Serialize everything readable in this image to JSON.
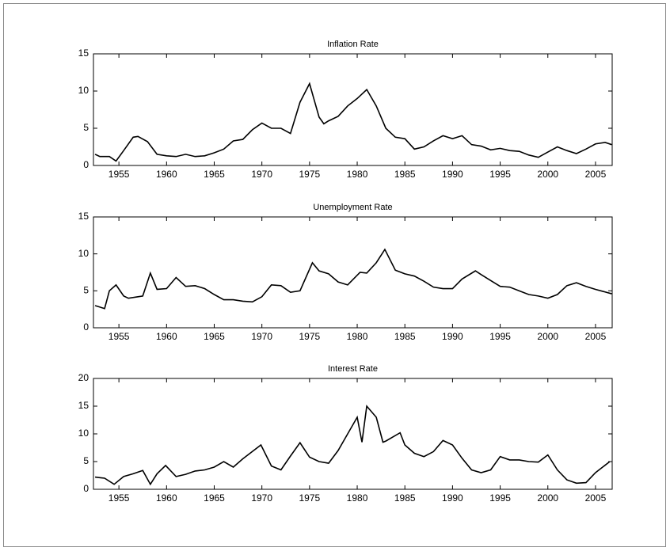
{
  "chart_data": [
    {
      "type": "line",
      "title": "Inflation Rate",
      "x": [
        1952.5,
        1953,
        1954,
        1954.7,
        1955.5,
        1956.5,
        1957,
        1958,
        1959,
        1960,
        1961,
        1962,
        1963,
        1964,
        1965,
        1966,
        1967,
        1968,
        1969,
        1970,
        1971,
        1972,
        1973,
        1974,
        1975,
        1976,
        1976.5,
        1977,
        1978,
        1979,
        1980,
        1981,
        1982,
        1983,
        1984,
        1985,
        1986,
        1987,
        1988,
        1989,
        1990,
        1991,
        1992,
        1993,
        1994,
        1995,
        1996,
        1997,
        1998,
        1999,
        2000,
        2001,
        2002,
        2003,
        2004,
        2005,
        2006,
        2006.7
      ],
      "series": [
        {
          "color": "#000000",
          "values": [
            1.5,
            1.2,
            1.2,
            0.6,
            2,
            3.8,
            3.9,
            3.2,
            1.5,
            1.3,
            1.2,
            1.5,
            1.2,
            1.3,
            1.7,
            2.2,
            3.3,
            3.5,
            4.8,
            5.7,
            5.0,
            5.0,
            4.3,
            8.5,
            11.0,
            6.5,
            5.6,
            6.0,
            6.6,
            8.0,
            9.0,
            10.2,
            8.0,
            5.0,
            3.8,
            3.6,
            2.2,
            2.5,
            3.3,
            4.0,
            3.6,
            4.0,
            2.8,
            2.6,
            2.1,
            2.3,
            2.0,
            1.9,
            1.4,
            1.1,
            1.8,
            2.5,
            2.0,
            1.6,
            2.2,
            2.9,
            3.1,
            2.8
          ]
        }
      ],
      "xlim": [
        1952.33,
        2006.75
      ],
      "xticks": [
        1955,
        1960,
        1965,
        1970,
        1975,
        1980,
        1985,
        1990,
        1995,
        2000,
        2005
      ],
      "ylim": [
        0,
        15
      ],
      "yticks": [
        0,
        5,
        10,
        15
      ]
    },
    {
      "type": "line",
      "title": "Unemployment Rate",
      "x": [
        1952.5,
        1953.5,
        1954,
        1954.7,
        1955.5,
        1956,
        1957,
        1957.5,
        1958.3,
        1959,
        1960,
        1961,
        1962,
        1963,
        1964,
        1965,
        1966,
        1967,
        1968,
        1969,
        1970,
        1971,
        1972,
        1973,
        1974,
        1975.3,
        1976,
        1977,
        1978,
        1979,
        1980.3,
        1981,
        1982,
        1982.9,
        1984,
        1985,
        1986,
        1987,
        1988,
        1989,
        1990,
        1991,
        1992.4,
        1993,
        1994,
        1995,
        1996,
        1997,
        1998,
        1999,
        2000,
        2001,
        2002,
        2003,
        2004,
        2005,
        2006.7
      ],
      "series": [
        {
          "color": "#000000",
          "values": [
            3.0,
            2.6,
            5.0,
            5.8,
            4.3,
            4.0,
            4.2,
            4.3,
            7.4,
            5.2,
            5.3,
            6.8,
            5.6,
            5.7,
            5.3,
            4.5,
            3.8,
            3.8,
            3.6,
            3.5,
            4.2,
            5.8,
            5.7,
            4.8,
            5.0,
            8.8,
            7.7,
            7.3,
            6.2,
            5.8,
            7.5,
            7.4,
            8.8,
            10.6,
            7.8,
            7.3,
            7.0,
            6.3,
            5.5,
            5.3,
            5.3,
            6.6,
            7.7,
            7.2,
            6.4,
            5.6,
            5.5,
            5.0,
            4.5,
            4.3,
            4.0,
            4.5,
            5.7,
            6.1,
            5.6,
            5.2,
            4.6
          ]
        }
      ],
      "xlim": [
        1952.33,
        2006.75
      ],
      "xticks": [
        1955,
        1960,
        1965,
        1970,
        1975,
        1980,
        1985,
        1990,
        1995,
        2000,
        2005
      ],
      "ylim": [
        0,
        15
      ],
      "yticks": [
        0,
        5,
        10,
        15
      ]
    },
    {
      "type": "line",
      "title": "Interest Rate",
      "x": [
        1952.5,
        1953.5,
        1954.5,
        1955.5,
        1956.5,
        1957.5,
        1958.3,
        1959,
        1959.9,
        1961,
        1962,
        1963,
        1964,
        1965,
        1966,
        1967,
        1968,
        1969.9,
        1971,
        1972,
        1973,
        1974,
        1975,
        1976,
        1977,
        1978,
        1979,
        1980,
        1980.5,
        1981,
        1982,
        1982.7,
        1983,
        1984.5,
        1985,
        1986,
        1987,
        1988,
        1989,
        1990,
        1991,
        1992,
        1993,
        1994,
        1995,
        1996,
        1997,
        1998,
        1999,
        2000,
        2001,
        2002,
        2003,
        2004,
        2005,
        2006.5
      ],
      "series": [
        {
          "color": "#000000",
          "values": [
            2.2,
            2.0,
            0.9,
            2.3,
            2.8,
            3.4,
            0.9,
            2.8,
            4.3,
            2.3,
            2.7,
            3.3,
            3.5,
            4.0,
            5.0,
            4.0,
            5.5,
            8.0,
            4.2,
            3.5,
            6.0,
            8.4,
            5.8,
            5.0,
            4.7,
            7.0,
            10.0,
            13.0,
            8.5,
            15.0,
            13.0,
            8.5,
            8.7,
            10.2,
            8.0,
            6.5,
            5.9,
            6.8,
            8.8,
            8.0,
            5.6,
            3.5,
            3.0,
            3.5,
            5.9,
            5.3,
            5.3,
            5.0,
            4.9,
            6.2,
            3.5,
            1.7,
            1.1,
            1.2,
            3.0,
            5.0
          ]
        }
      ],
      "xlim": [
        1952.33,
        2006.75
      ],
      "xticks": [
        1955,
        1960,
        1965,
        1970,
        1975,
        1980,
        1985,
        1990,
        1995,
        2000,
        2005
      ],
      "ylim": [
        0,
        20
      ],
      "yticks": [
        0,
        5,
        10,
        15,
        20
      ]
    }
  ]
}
